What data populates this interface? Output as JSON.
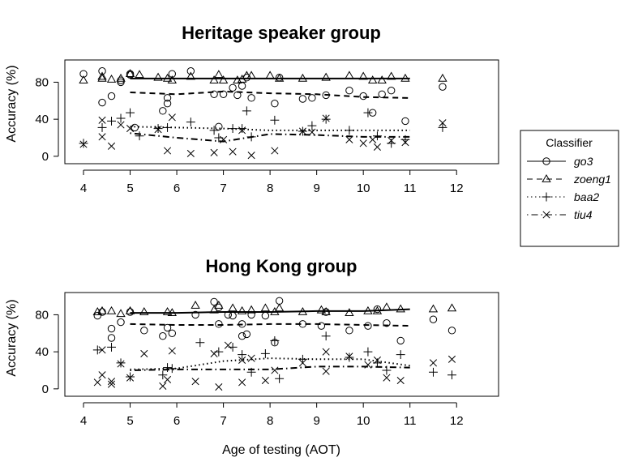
{
  "chart_data": [
    {
      "type": "scatter",
      "title": "Heritage speaker group",
      "xlabel": "",
      "ylabel": "Accuracy (%)",
      "xlim": [
        3.6,
        12.9
      ],
      "ylim": [
        -8,
        104
      ],
      "xticks": [
        "4",
        "5",
        "6",
        "7",
        "8",
        "9",
        "10",
        "11",
        "12"
      ],
      "yticks": [
        "0",
        "40",
        "80"
      ],
      "series": [
        {
          "name": "go3",
          "marker": "circle",
          "points": [
            [
              4.0,
              89
            ],
            [
              4.4,
              92
            ],
            [
              4.4,
              58
            ],
            [
              4.6,
              65
            ],
            [
              4.8,
              80
            ],
            [
              4.8,
              82
            ],
            [
              5.0,
              88
            ],
            [
              5.0,
              89
            ],
            [
              5.1,
              31
            ],
            [
              5.7,
              49
            ],
            [
              5.8,
              57
            ],
            [
              5.8,
              63
            ],
            [
              5.9,
              89
            ],
            [
              6.3,
              92
            ],
            [
              6.8,
              67
            ],
            [
              6.9,
              32
            ],
            [
              7.0,
              67
            ],
            [
              7.2,
              74
            ],
            [
              7.3,
              66
            ],
            [
              7.4,
              76
            ],
            [
              7.5,
              85
            ],
            [
              7.6,
              63
            ],
            [
              8.1,
              57
            ],
            [
              8.2,
              85
            ],
            [
              8.7,
              62
            ],
            [
              8.9,
              63
            ],
            [
              9.2,
              66
            ],
            [
              9.7,
              71
            ],
            [
              10.0,
              65
            ],
            [
              10.2,
              47
            ],
            [
              10.4,
              67
            ],
            [
              10.6,
              71
            ],
            [
              10.9,
              38
            ],
            [
              11.7,
              75
            ]
          ],
          "fit_x": [
            5.0,
            6.0,
            7.0,
            8.0,
            9.0,
            10.0,
            11.0
          ],
          "fit_y": [
            84,
            84,
            84,
            84,
            84,
            84,
            84
          ]
        },
        {
          "name": "zoeng1",
          "marker": "triangle",
          "points": [
            [
              4.0,
              82
            ],
            [
              4.4,
              86
            ],
            [
              4.4,
              84
            ],
            [
              4.6,
              83
            ],
            [
              4.8,
              84
            ],
            [
              5.0,
              89
            ],
            [
              5.2,
              88
            ],
            [
              5.6,
              85
            ],
            [
              5.8,
              84
            ],
            [
              5.9,
              82
            ],
            [
              6.3,
              86
            ],
            [
              6.8,
              82
            ],
            [
              6.9,
              88
            ],
            [
              7.0,
              82
            ],
            [
              7.3,
              82
            ],
            [
              7.4,
              83
            ],
            [
              7.5,
              87
            ],
            [
              7.6,
              87
            ],
            [
              8.0,
              87
            ],
            [
              8.2,
              84
            ],
            [
              8.7,
              84
            ],
            [
              9.2,
              85
            ],
            [
              9.7,
              87
            ],
            [
              10.0,
              86
            ],
            [
              10.2,
              82
            ],
            [
              10.4,
              82
            ],
            [
              10.6,
              86
            ],
            [
              10.9,
              84
            ],
            [
              11.7,
              84
            ]
          ],
          "fit_x": [
            5.0,
            6.0,
            7.0,
            8.0,
            9.0,
            10.0,
            11.0
          ],
          "fit_y": [
            69,
            67,
            70,
            68,
            67,
            64,
            63
          ]
        },
        {
          "name": "baa2",
          "marker": "plus",
          "points": [
            [
              4.0,
              14
            ],
            [
              4.4,
              31
            ],
            [
              4.6,
              38
            ],
            [
              4.8,
              41
            ],
            [
              5.0,
              47
            ],
            [
              5.2,
              22
            ],
            [
              5.6,
              30
            ],
            [
              5.8,
              31
            ],
            [
              6.3,
              37
            ],
            [
              6.8,
              28
            ],
            [
              6.9,
              20
            ],
            [
              7.2,
              30
            ],
            [
              7.4,
              30
            ],
            [
              7.5,
              49
            ],
            [
              7.6,
              21
            ],
            [
              8.1,
              39
            ],
            [
              8.7,
              27
            ],
            [
              8.9,
              33
            ],
            [
              9.2,
              40
            ],
            [
              9.7,
              28
            ],
            [
              10.1,
              47
            ],
            [
              10.3,
              22
            ],
            [
              10.6,
              14
            ],
            [
              10.9,
              18
            ],
            [
              11.7,
              31
            ]
          ],
          "fit_x": [
            5.0,
            6.0,
            7.0,
            8.0,
            9.0,
            10.0,
            11.0
          ],
          "fit_y": [
            32,
            31,
            30,
            28,
            28,
            28,
            28
          ]
        },
        {
          "name": "tiu4",
          "marker": "cross",
          "points": [
            [
              4.0,
              13
            ],
            [
              4.4,
              39
            ],
            [
              4.4,
              21
            ],
            [
              4.6,
              11
            ],
            [
              4.8,
              34
            ],
            [
              5.0,
              30
            ],
            [
              5.6,
              29
            ],
            [
              5.8,
              6
            ],
            [
              5.9,
              42
            ],
            [
              6.3,
              3
            ],
            [
              6.8,
              4
            ],
            [
              7.0,
              18
            ],
            [
              7.2,
              5
            ],
            [
              7.4,
              28
            ],
            [
              7.6,
              1
            ],
            [
              8.1,
              6
            ],
            [
              8.7,
              27
            ],
            [
              8.9,
              26
            ],
            [
              9.2,
              41
            ],
            [
              9.7,
              18
            ],
            [
              10.0,
              14
            ],
            [
              10.2,
              18
            ],
            [
              10.3,
              10
            ],
            [
              10.6,
              17
            ],
            [
              10.9,
              15
            ],
            [
              11.7,
              36
            ]
          ],
          "fit_x": [
            5.0,
            6.0,
            7.0,
            8.0,
            9.0,
            10.0,
            11.0
          ],
          "fit_y": [
            25,
            20,
            16,
            24,
            23,
            21,
            21
          ]
        }
      ]
    },
    {
      "type": "scatter",
      "title": "Hong Kong group",
      "xlabel": "Age of testing (AOT)",
      "ylabel": "Accuracy (%)",
      "xlim": [
        3.6,
        12.9
      ],
      "ylim": [
        -8,
        104
      ],
      "xticks": [
        "4",
        "5",
        "6",
        "7",
        "8",
        "9",
        "10",
        "11",
        "12"
      ],
      "yticks": [
        "0",
        "40",
        "80"
      ],
      "series": [
        {
          "name": "go3",
          "marker": "circle",
          "points": [
            [
              4.3,
              79
            ],
            [
              4.4,
              83
            ],
            [
              4.6,
              55
            ],
            [
              4.6,
              65
            ],
            [
              4.8,
              72
            ],
            [
              5.0,
              83
            ],
            [
              5.3,
              63
            ],
            [
              5.7,
              57
            ],
            [
              5.8,
              66
            ],
            [
              5.9,
              60
            ],
            [
              6.4,
              80
            ],
            [
              6.8,
              94
            ],
            [
              6.9,
              88
            ],
            [
              6.9,
              70
            ],
            [
              7.1,
              80
            ],
            [
              7.2,
              79
            ],
            [
              7.4,
              70
            ],
            [
              7.4,
              57
            ],
            [
              7.5,
              59
            ],
            [
              7.6,
              80
            ],
            [
              7.9,
              79
            ],
            [
              8.1,
              50
            ],
            [
              8.2,
              95
            ],
            [
              8.7,
              70
            ],
            [
              9.1,
              68
            ],
            [
              9.2,
              83
            ],
            [
              9.7,
              63
            ],
            [
              10.1,
              68
            ],
            [
              10.3,
              86
            ],
            [
              10.5,
              71
            ],
            [
              10.8,
              52
            ],
            [
              11.5,
              75
            ],
            [
              11.9,
              63
            ]
          ],
          "fit_x": [
            5.0,
            6.0,
            7.0,
            8.0,
            9.0,
            10.0,
            11.0
          ],
          "fit_y": [
            82,
            82,
            83,
            83,
            84,
            84,
            86
          ]
        },
        {
          "name": "zoeng1",
          "marker": "triangle",
          "points": [
            [
              4.3,
              83
            ],
            [
              4.4,
              84
            ],
            [
              4.6,
              84
            ],
            [
              4.8,
              81
            ],
            [
              5.0,
              84
            ],
            [
              5.3,
              83
            ],
            [
              5.8,
              83
            ],
            [
              5.9,
              82
            ],
            [
              6.4,
              90
            ],
            [
              6.8,
              85
            ],
            [
              6.9,
              90
            ],
            [
              7.2,
              87
            ],
            [
              7.4,
              84
            ],
            [
              7.6,
              85
            ],
            [
              7.9,
              87
            ],
            [
              8.1,
              83
            ],
            [
              8.2,
              87
            ],
            [
              8.7,
              83
            ],
            [
              9.1,
              85
            ],
            [
              9.2,
              83
            ],
            [
              9.7,
              82
            ],
            [
              10.1,
              84
            ],
            [
              10.3,
              84
            ],
            [
              10.5,
              88
            ],
            [
              10.8,
              86
            ],
            [
              11.5,
              86
            ],
            [
              11.9,
              87
            ]
          ],
          "fit_x": [
            5.0,
            6.0,
            7.0,
            8.0,
            9.0,
            10.0,
            11.0
          ],
          "fit_y": [
            70,
            69,
            69,
            70,
            70,
            69,
            68
          ]
        },
        {
          "name": "baa2",
          "marker": "plus",
          "points": [
            [
              4.3,
              42
            ],
            [
              4.6,
              45
            ],
            [
              4.8,
              28
            ],
            [
              5.0,
              13
            ],
            [
              5.7,
              15
            ],
            [
              5.8,
              23
            ],
            [
              5.9,
              22
            ],
            [
              6.5,
              50
            ],
            [
              6.9,
              40
            ],
            [
              7.2,
              45
            ],
            [
              7.4,
              37
            ],
            [
              7.6,
              18
            ],
            [
              7.9,
              38
            ],
            [
              8.1,
              52
            ],
            [
              8.2,
              11
            ],
            [
              8.7,
              32
            ],
            [
              9.2,
              57
            ],
            [
              9.7,
              34
            ],
            [
              10.1,
              40
            ],
            [
              10.3,
              28
            ],
            [
              10.5,
              20
            ],
            [
              10.8,
              37
            ],
            [
              11.5,
              18
            ],
            [
              11.9,
              15
            ]
          ],
          "fit_x": [
            5.0,
            6.0,
            7.0,
            8.0,
            9.0,
            10.0,
            11.0
          ],
          "fit_y": [
            21,
            22,
            30,
            33,
            32,
            32,
            25
          ]
        },
        {
          "name": "tiu4",
          "marker": "cross",
          "points": [
            [
              4.3,
              7
            ],
            [
              4.4,
              42
            ],
            [
              4.4,
              15
            ],
            [
              4.6,
              8
            ],
            [
              4.6,
              5
            ],
            [
              4.8,
              27
            ],
            [
              5.0,
              12
            ],
            [
              5.3,
              38
            ],
            [
              5.7,
              3
            ],
            [
              5.8,
              10
            ],
            [
              5.9,
              41
            ],
            [
              6.4,
              8
            ],
            [
              6.8,
              38
            ],
            [
              6.9,
              2
            ],
            [
              7.1,
              47
            ],
            [
              7.4,
              31
            ],
            [
              7.4,
              7
            ],
            [
              7.6,
              33
            ],
            [
              7.9,
              9
            ],
            [
              8.1,
              20
            ],
            [
              8.7,
              28
            ],
            [
              9.2,
              19
            ],
            [
              9.2,
              40
            ],
            [
              9.7,
              35
            ],
            [
              10.1,
              26
            ],
            [
              10.3,
              31
            ],
            [
              10.5,
              12
            ],
            [
              10.8,
              9
            ],
            [
              11.5,
              28
            ],
            [
              11.9,
              32
            ]
          ],
          "fit_x": [
            5.0,
            6.0,
            7.0,
            8.0,
            9.0,
            10.0,
            11.0
          ],
          "fit_y": [
            20,
            21,
            21,
            21,
            24,
            24,
            23
          ]
        }
      ]
    }
  ],
  "legend": {
    "title": "Classifier",
    "items": [
      {
        "label": "go3",
        "marker": "circle",
        "line": "solid"
      },
      {
        "label": "zoeng1",
        "marker": "triangle",
        "line": "dashed"
      },
      {
        "label": "baa2",
        "marker": "plus",
        "line": "dotted"
      },
      {
        "label": "tiu4",
        "marker": "cross",
        "line": "dotdash"
      }
    ]
  },
  "line_styles": {
    "go3": "solid",
    "zoeng1": "dashed",
    "baa2": "dotted",
    "tiu4": "dotdash"
  },
  "colors": {
    "ink": "#000000",
    "background": "#ffffff"
  }
}
